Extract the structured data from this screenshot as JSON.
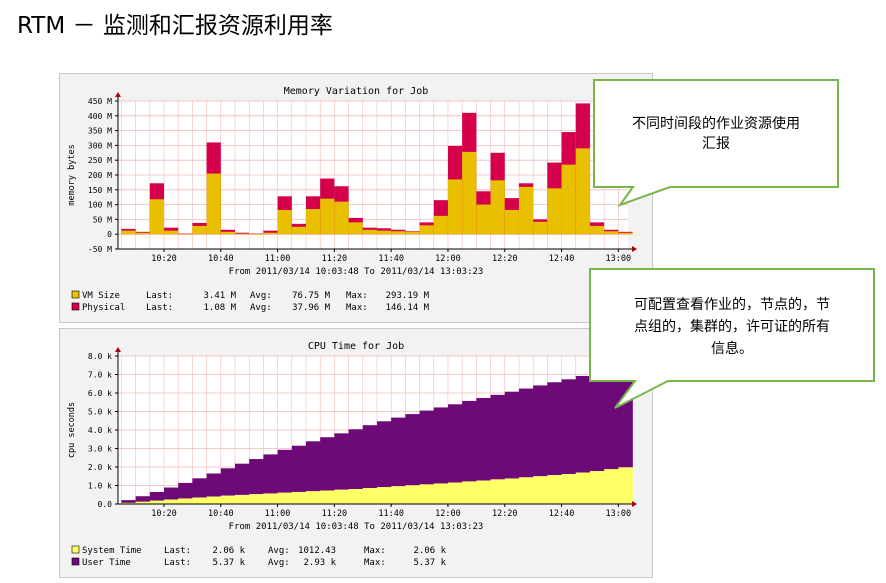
{
  "slide": {
    "title": "RTM － 监测和汇报资源利用率"
  },
  "callouts": [
    {
      "text_lines": [
        "不同时间段的作业资源使用",
        "汇报"
      ]
    },
    {
      "text_lines": [
        "可配置查看作业的，节点的，节",
        "点组的，集群的，许可证的所有",
        "信息。"
      ]
    }
  ],
  "colors": {
    "grid": "#f4b8b8",
    "plot_bg": "#ffffff",
    "panel_bg": "#f2f2f2",
    "vm_size": "#e8c000",
    "physical": "#d4004c",
    "system_time": "#ffff66",
    "user_time": "#6e0a78",
    "callout_border": "#77b64a"
  },
  "chart_data": [
    {
      "type": "bar",
      "title": "Memory Variation for Job",
      "ylabel": "memory bytes",
      "ylim": [
        -50,
        450
      ],
      "yticks": [
        "450 M",
        "400 M",
        "350 M",
        "300 M",
        "250 M",
        "200 M",
        "150 M",
        "100 M",
        "50 M",
        "0",
        "-50 M"
      ],
      "yticks_values": [
        450,
        400,
        350,
        300,
        250,
        200,
        150,
        100,
        50,
        0,
        -50
      ],
      "xticks": [
        "10:20",
        "10:40",
        "11:00",
        "11:20",
        "11:40",
        "12:00",
        "12:20",
        "12:40",
        "13:00"
      ],
      "xticks_minutes": [
        20,
        40,
        60,
        80,
        100,
        120,
        140,
        160,
        180
      ],
      "x_range_minutes": [
        3.8,
        183.4
      ],
      "bar_width_minutes": 5,
      "x_start_minutes": [
        5,
        10,
        15,
        20,
        25,
        30,
        35,
        40,
        45,
        50,
        55,
        60,
        65,
        70,
        75,
        80,
        85,
        90,
        95,
        100,
        105,
        110,
        115,
        120,
        125,
        130,
        135,
        140,
        145,
        150,
        155,
        160,
        165,
        170,
        175,
        180
      ],
      "series": [
        {
          "name": "VM Size",
          "values": [
            12,
            5,
            118,
            12,
            0,
            28,
            205,
            8,
            2,
            0,
            5,
            82,
            25,
            85,
            120,
            110,
            40,
            15,
            12,
            10,
            8,
            30,
            62,
            185,
            278,
            100,
            182,
            82,
            160,
            42,
            155,
            235,
            290,
            28,
            10,
            5
          ]
        },
        {
          "name": "Physical",
          "values": [
            18,
            8,
            172,
            22,
            2,
            38,
            310,
            15,
            5,
            2,
            12,
            128,
            35,
            128,
            188,
            162,
            55,
            22,
            20,
            15,
            10,
            40,
            115,
            298,
            410,
            145,
            275,
            122,
            172,
            50,
            242,
            345,
            442,
            40,
            15,
            8
          ]
        }
      ],
      "time_range": "From 2011/03/14 10:03:48 To 2011/03/14 13:03:23",
      "legend": [
        {
          "name": "VM Size",
          "last": "3.41 M",
          "avg": "76.75 M",
          "max": "293.19 M"
        },
        {
          "name": "Physical",
          "last": "1.08 M",
          "avg": "37.96 M",
          "max": "146.14 M"
        }
      ],
      "legend_labels": {
        "last": "Last:",
        "avg": "Avg:",
        "max": "Max:"
      }
    },
    {
      "type": "area",
      "title": "CPU Time for Job",
      "ylabel": "cpu seconds",
      "ylim": [
        0,
        8000
      ],
      "yticks": [
        "8.0 k",
        "7.0 k",
        "6.0 k",
        "5.0 k",
        "4.0 k",
        "3.0 k",
        "2.0 k",
        "1.0 k",
        "0.0"
      ],
      "yticks_values": [
        8000,
        7000,
        6000,
        5000,
        4000,
        3000,
        2000,
        1000,
        0
      ],
      "xticks": [
        "10:20",
        "10:40",
        "11:00",
        "11:20",
        "11:40",
        "12:00",
        "12:20",
        "12:40",
        "13:00"
      ],
      "xticks_minutes": [
        20,
        40,
        60,
        80,
        100,
        120,
        140,
        160,
        180
      ],
      "x_range_minutes": [
        3.8,
        183.4
      ],
      "bar_width_minutes": 5,
      "x_start_minutes": [
        5,
        10,
        15,
        20,
        25,
        30,
        35,
        40,
        45,
        50,
        55,
        60,
        65,
        70,
        75,
        80,
        85,
        90,
        95,
        100,
        105,
        110,
        115,
        120,
        125,
        130,
        135,
        140,
        145,
        150,
        155,
        160,
        165,
        170,
        175,
        180
      ],
      "series": [
        {
          "name": "System Time",
          "values": [
            60,
            120,
            180,
            240,
            300,
            350,
            400,
            450,
            490,
            530,
            570,
            610,
            650,
            690,
            730,
            770,
            810,
            860,
            910,
            960,
            1010,
            1060,
            1110,
            1160,
            1220,
            1270,
            1330,
            1380,
            1440,
            1500,
            1560,
            1620,
            1700,
            1780,
            1880,
            1980
          ]
        },
        {
          "name": "User Time",
          "values": [
            150,
            300,
            470,
            650,
            840,
            1040,
            1250,
            1480,
            1690,
            1900,
            2110,
            2320,
            2500,
            2700,
            2880,
            3050,
            3230,
            3400,
            3560,
            3710,
            3850,
            3990,
            4110,
            4230,
            4350,
            4460,
            4570,
            4690,
            4800,
            4910,
            5020,
            5120,
            5220,
            5320,
            5400,
            5500
          ]
        }
      ],
      "time_range": "From 2011/03/14 10:03:48 To 2011/03/14 13:03:23",
      "legend": [
        {
          "name": "System Time",
          "last": "2.06 k",
          "avg": "1012.43",
          "max": "2.06 k"
        },
        {
          "name": "User Time",
          "last": "5.37 k",
          "avg": "2.93 k",
          "max": "5.37 k"
        }
      ],
      "legend_labels": {
        "last": "Last:",
        "avg": "Avg:",
        "max": "Max:"
      }
    }
  ]
}
